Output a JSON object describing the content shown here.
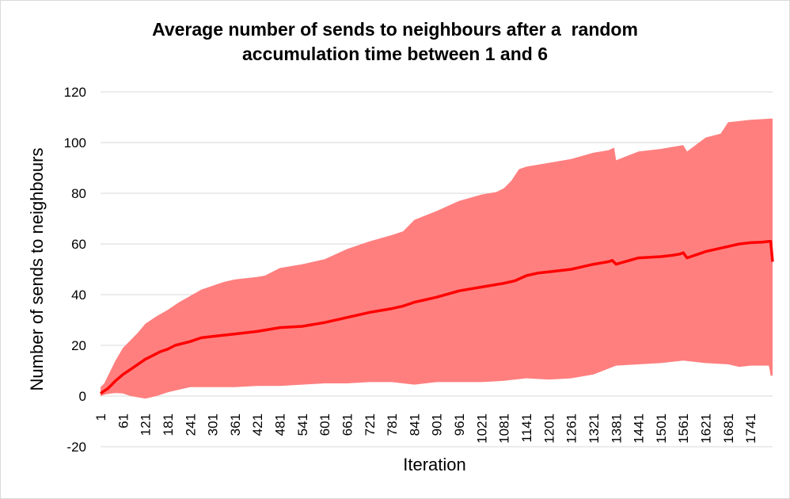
{
  "chart_data": {
    "type": "area",
    "title_lines": [
      "Average number of sends to neighbours after a  random",
      "accumulation time between 1 and 6"
    ],
    "xlabel": "Iteration",
    "ylabel": "Number of sends to neighbours",
    "xlim": [
      1,
      1800
    ],
    "ylim": [
      -20,
      120
    ],
    "yticks": [
      -20,
      0,
      20,
      40,
      60,
      80,
      100,
      120
    ],
    "xticks": [
      "1",
      "61",
      "121",
      "181",
      "241",
      "301",
      "361",
      "421",
      "481",
      "541",
      "601",
      "661",
      "721",
      "781",
      "841",
      "901",
      "961",
      "1021",
      "1081",
      "1141",
      "1201",
      "1261",
      "1321",
      "1381",
      "1441",
      "1501",
      "1561",
      "1621",
      "1681",
      "1741"
    ],
    "grid": true,
    "legend": "none",
    "colors": {
      "mean": "#ff0000",
      "band": "#ff7f7f",
      "grid": "#d9d9d9"
    },
    "series": [
      {
        "role": "mean",
        "x": [
          1,
          11,
          21,
          31,
          41,
          61,
          81,
          101,
          121,
          141,
          161,
          181,
          201,
          241,
          271,
          301,
          361,
          421,
          481,
          541,
          601,
          661,
          721,
          781,
          811,
          841,
          901,
          961,
          1021,
          1081,
          1111,
          1141,
          1171,
          1201,
          1261,
          1321,
          1361,
          1371,
          1381,
          1441,
          1501,
          1531,
          1551,
          1561,
          1571,
          1621,
          1681,
          1711,
          1741,
          1771,
          1791,
          1795,
          1800
        ],
        "values": [
          1,
          2,
          3,
          4.5,
          6,
          8.5,
          10.5,
          12.5,
          14.5,
          16,
          17.5,
          18.5,
          20,
          21.5,
          23,
          23.5,
          24.5,
          25.5,
          27,
          27.5,
          29,
          31,
          33,
          34.5,
          35.5,
          37,
          39,
          41.5,
          43,
          44.5,
          45.5,
          47.5,
          48.5,
          49,
          50,
          52,
          53,
          53.5,
          52,
          54.5,
          55,
          55.5,
          56,
          56.5,
          54.5,
          57,
          59,
          60,
          60.5,
          60.7,
          61,
          61,
          53
        ]
      },
      {
        "role": "upper",
        "x": [
          1,
          11,
          21,
          31,
          41,
          61,
          81,
          101,
          121,
          151,
          181,
          211,
          241,
          271,
          301,
          331,
          361,
          421,
          441,
          481,
          541,
          601,
          661,
          721,
          781,
          811,
          841,
          901,
          961,
          1021,
          1061,
          1081,
          1101,
          1121,
          1141,
          1201,
          1261,
          1321,
          1361,
          1376,
          1381,
          1441,
          1501,
          1541,
          1561,
          1571,
          1621,
          1661,
          1681,
          1741,
          1800
        ],
        "values": [
          3.5,
          5,
          8,
          11,
          14,
          19,
          22,
          25,
          28.5,
          31.5,
          34,
          37,
          39.5,
          42,
          43.5,
          45,
          46,
          47,
          47.5,
          50.5,
          52,
          54,
          58,
          61,
          63.5,
          65,
          69.5,
          73,
          77,
          79.5,
          80.5,
          82,
          85,
          89.5,
          90.5,
          92,
          93.5,
          96,
          97,
          98,
          93,
          96.5,
          97.5,
          98.5,
          99,
          96.5,
          102,
          103.5,
          108,
          109,
          109.5
        ]
      },
      {
        "role": "lower",
        "x": [
          1,
          11,
          21,
          31,
          41,
          61,
          81,
          101,
          121,
          151,
          181,
          211,
          241,
          301,
          361,
          421,
          481,
          541,
          601,
          661,
          721,
          781,
          841,
          901,
          961,
          1021,
          1081,
          1141,
          1201,
          1261,
          1321,
          1381,
          1441,
          1501,
          1561,
          1621,
          1681,
          1711,
          1741,
          1790,
          1795,
          1800
        ],
        "values": [
          0,
          0.5,
          0.8,
          1,
          1.2,
          1,
          0,
          -0.5,
          -1,
          0,
          1.5,
          2.5,
          3.5,
          3.5,
          3.5,
          4,
          4,
          4.5,
          5,
          5,
          5.5,
          5.5,
          4.5,
          5.5,
          5.5,
          5.5,
          6,
          7,
          6.5,
          7,
          8.5,
          12,
          12.5,
          13,
          14,
          13,
          12.5,
          11.5,
          12,
          12,
          8,
          8
        ]
      }
    ]
  }
}
